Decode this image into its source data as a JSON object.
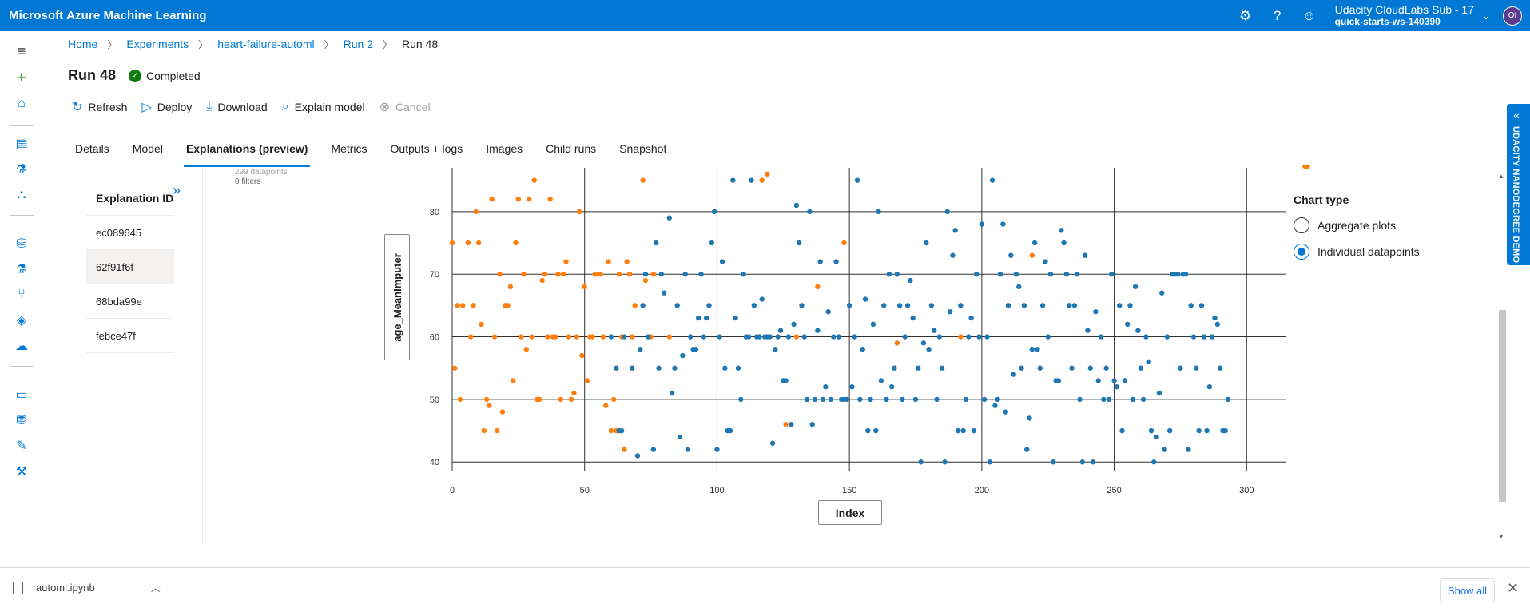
{
  "app": {
    "title": "Microsoft Azure Machine Learning"
  },
  "account": {
    "name": "Udacity CloudLabs Sub - 17",
    "workspace": "quick-starts-ws-140390",
    "avatar_initials": "OI"
  },
  "breadcrumb": [
    "Home",
    "Experiments",
    "heart-failure-automl",
    "Run 2",
    "Run 48"
  ],
  "run": {
    "title": "Run 48",
    "status": "Completed"
  },
  "toolbar": {
    "refresh": "Refresh",
    "deploy": "Deploy",
    "download": "Download",
    "explain": "Explain model",
    "cancel": "Cancel"
  },
  "tabs": [
    "Details",
    "Model",
    "Explanations (preview)",
    "Metrics",
    "Outputs + logs",
    "Images",
    "Child runs",
    "Snapshot"
  ],
  "explanations": {
    "header": "Explanation ID",
    "items": [
      "ec089645",
      "62f91f6f",
      "68bda99e",
      "febce47f"
    ],
    "selected": "62f91f6f"
  },
  "filter_info": {
    "datapoints": "299 datapoints",
    "filters": "0 filters"
  },
  "chart_type": {
    "title": "Chart type",
    "options": [
      "Aggregate plots",
      "Individual datapoints"
    ],
    "selected": "Individual datapoints"
  },
  "side_banner": "UDACITY NANODEGREE DEMO",
  "download_bar": {
    "file": "automl.ipynb",
    "show_all": "Show all"
  },
  "colors": {
    "brand": "#0078d4",
    "series_a": "#ff7f0e",
    "series_b": "#1f77b4"
  },
  "chart_data": {
    "type": "scatter",
    "xlabel": "Index",
    "ylabel": "age_MeanImputer",
    "xlim": [
      0,
      315
    ],
    "ylim": [
      38.5,
      87
    ],
    "x_ticks": [
      0,
      50,
      100,
      150,
      200,
      250,
      300
    ],
    "y_ticks": [
      40,
      50,
      60,
      70,
      80
    ],
    "grid": true,
    "series": [
      {
        "color": "#ff7f0e",
        "points": [
          [
            0,
            75
          ],
          [
            1,
            55
          ],
          [
            2,
            65
          ],
          [
            3,
            50
          ],
          [
            4,
            65
          ],
          [
            6,
            75
          ],
          [
            7,
            60
          ],
          [
            8,
            65
          ],
          [
            9,
            80
          ],
          [
            10,
            75
          ],
          [
            11,
            62
          ],
          [
            12,
            45
          ],
          [
            13,
            50
          ],
          [
            14,
            49
          ],
          [
            15,
            82
          ],
          [
            16,
            60
          ],
          [
            17,
            45
          ],
          [
            18,
            70
          ],
          [
            19,
            48
          ],
          [
            20,
            65
          ],
          [
            21,
            65
          ],
          [
            22,
            68
          ],
          [
            23,
            53
          ],
          [
            24,
            75
          ],
          [
            25,
            82
          ],
          [
            26,
            60
          ],
          [
            27,
            70
          ],
          [
            28,
            58
          ],
          [
            29,
            82
          ],
          [
            30,
            60
          ],
          [
            31,
            85
          ],
          [
            32,
            50
          ],
          [
            33,
            50
          ],
          [
            34,
            69
          ],
          [
            35,
            70
          ],
          [
            36,
            60
          ],
          [
            37,
            82
          ],
          [
            38,
            60
          ],
          [
            39,
            60
          ],
          [
            40,
            70
          ],
          [
            41,
            50
          ],
          [
            42,
            70
          ],
          [
            43,
            72
          ],
          [
            44,
            60
          ],
          [
            45,
            50
          ],
          [
            46,
            51
          ],
          [
            47,
            60
          ],
          [
            48,
            80
          ],
          [
            49,
            57
          ],
          [
            50,
            68
          ],
          [
            51,
            53
          ],
          [
            52,
            60
          ],
          [
            53,
            60
          ],
          [
            54,
            70
          ],
          [
            56,
            70
          ],
          [
            57,
            60
          ],
          [
            58,
            49
          ],
          [
            59,
            72
          ],
          [
            60,
            45
          ],
          [
            61,
            50
          ],
          [
            62,
            45
          ],
          [
            63,
            70
          ],
          [
            64,
            60
          ],
          [
            65,
            42
          ],
          [
            66,
            72
          ],
          [
            67,
            70
          ],
          [
            68,
            60
          ],
          [
            69,
            65
          ],
          [
            72,
            85
          ],
          [
            73,
            69
          ],
          [
            75,
            60
          ],
          [
            76,
            70
          ],
          [
            82,
            60
          ],
          [
            117,
            85
          ],
          [
            119,
            86
          ],
          [
            126,
            46
          ],
          [
            130,
            60
          ],
          [
            138,
            68
          ],
          [
            148,
            75
          ],
          [
            168,
            59
          ],
          [
            192,
            60
          ],
          [
            219,
            73
          ]
        ]
      },
      {
        "color": "#1f77b4",
        "points": [
          [
            60,
            60
          ],
          [
            62,
            55
          ],
          [
            63,
            45
          ],
          [
            64,
            45
          ],
          [
            65,
            60
          ],
          [
            68,
            55
          ],
          [
            70,
            41
          ],
          [
            71,
            58
          ],
          [
            72,
            65
          ],
          [
            73,
            70
          ],
          [
            74,
            60
          ],
          [
            76,
            42
          ],
          [
            77,
            75
          ],
          [
            78,
            55
          ],
          [
            79,
            70
          ],
          [
            80,
            67
          ],
          [
            82,
            79
          ],
          [
            83,
            51
          ],
          [
            84,
            55
          ],
          [
            85,
            65
          ],
          [
            86,
            44
          ],
          [
            87,
            57
          ],
          [
            88,
            70
          ],
          [
            89,
            42
          ],
          [
            90,
            60
          ],
          [
            91,
            58
          ],
          [
            92,
            58
          ],
          [
            93,
            63
          ],
          [
            94,
            70
          ],
          [
            95,
            60
          ],
          [
            96,
            63
          ],
          [
            97,
            65
          ],
          [
            98,
            75
          ],
          [
            99,
            80
          ],
          [
            100,
            42
          ],
          [
            101,
            60
          ],
          [
            102,
            72
          ],
          [
            103,
            55
          ],
          [
            104,
            45
          ],
          [
            105,
            45
          ],
          [
            106,
            85
          ],
          [
            107,
            63
          ],
          [
            108,
            55
          ],
          [
            109,
            50
          ],
          [
            110,
            70
          ],
          [
            111,
            60
          ],
          [
            112,
            60
          ],
          [
            113,
            85
          ],
          [
            114,
            65
          ],
          [
            115,
            60
          ],
          [
            116,
            60
          ],
          [
            117,
            66
          ],
          [
            118,
            60
          ],
          [
            119,
            60
          ],
          [
            120,
            60
          ],
          [
            121,
            43
          ],
          [
            122,
            58
          ],
          [
            123,
            60
          ],
          [
            124,
            61
          ],
          [
            125,
            53
          ],
          [
            126,
            53
          ],
          [
            127,
            60
          ],
          [
            128,
            46
          ],
          [
            129,
            62
          ],
          [
            130,
            81
          ],
          [
            131,
            75
          ],
          [
            132,
            65
          ],
          [
            133,
            60
          ],
          [
            134,
            50
          ],
          [
            135,
            80
          ],
          [
            136,
            46
          ],
          [
            137,
            50
          ],
          [
            138,
            61
          ],
          [
            139,
            72
          ],
          [
            140,
            50
          ],
          [
            141,
            52
          ],
          [
            142,
            64
          ],
          [
            143,
            50
          ],
          [
            144,
            60
          ],
          [
            145,
            72
          ],
          [
            146,
            60
          ],
          [
            147,
            50
          ],
          [
            148,
            50
          ],
          [
            149,
            50
          ],
          [
            150,
            65
          ],
          [
            151,
            52
          ],
          [
            152,
            60
          ],
          [
            153,
            85
          ],
          [
            154,
            50
          ],
          [
            155,
            58
          ],
          [
            156,
            66
          ],
          [
            157,
            45
          ],
          [
            158,
            50
          ],
          [
            159,
            62
          ],
          [
            160,
            45
          ],
          [
            161,
            80
          ],
          [
            162,
            53
          ],
          [
            163,
            65
          ],
          [
            164,
            50
          ],
          [
            165,
            70
          ],
          [
            166,
            52
          ],
          [
            167,
            55
          ],
          [
            168,
            70
          ],
          [
            169,
            65
          ],
          [
            170,
            50
          ],
          [
            171,
            60
          ],
          [
            172,
            65
          ],
          [
            173,
            69
          ],
          [
            174,
            63
          ],
          [
            175,
            50
          ],
          [
            176,
            55
          ],
          [
            177,
            40
          ],
          [
            178,
            59
          ],
          [
            179,
            75
          ],
          [
            180,
            58
          ],
          [
            181,
            65
          ],
          [
            182,
            61
          ],
          [
            183,
            50
          ],
          [
            184,
            60
          ],
          [
            185,
            55
          ],
          [
            186,
            40
          ],
          [
            187,
            80
          ],
          [
            188,
            64
          ],
          [
            189,
            73
          ],
          [
            190,
            77
          ],
          [
            191,
            45
          ],
          [
            192,
            65
          ],
          [
            193,
            45
          ],
          [
            194,
            50
          ],
          [
            195,
            60
          ],
          [
            196,
            63
          ],
          [
            197,
            45
          ],
          [
            198,
            70
          ],
          [
            199,
            60
          ],
          [
            200,
            78
          ],
          [
            201,
            50
          ],
          [
            202,
            60
          ],
          [
            203,
            40
          ],
          [
            204,
            85
          ],
          [
            205,
            49
          ],
          [
            206,
            50
          ],
          [
            207,
            70
          ],
          [
            208,
            78
          ],
          [
            209,
            48
          ],
          [
            210,
            65
          ],
          [
            211,
            73
          ],
          [
            212,
            54
          ],
          [
            213,
            70
          ],
          [
            214,
            68
          ],
          [
            215,
            55
          ],
          [
            216,
            65
          ],
          [
            217,
            42
          ],
          [
            218,
            47
          ],
          [
            219,
            58
          ],
          [
            220,
            75
          ],
          [
            221,
            58
          ],
          [
            222,
            55
          ],
          [
            223,
            65
          ],
          [
            224,
            72
          ],
          [
            225,
            60
          ],
          [
            226,
            70
          ],
          [
            227,
            40
          ],
          [
            228,
            53
          ],
          [
            229,
            53
          ],
          [
            230,
            77
          ],
          [
            231,
            75
          ],
          [
            232,
            70
          ],
          [
            233,
            65
          ],
          [
            234,
            55
          ],
          [
            235,
            65
          ],
          [
            236,
            70
          ],
          [
            237,
            50
          ],
          [
            238,
            40
          ],
          [
            239,
            73
          ],
          [
            240,
            61
          ],
          [
            241,
            55
          ],
          [
            242,
            40
          ],
          [
            243,
            64
          ],
          [
            244,
            53
          ],
          [
            245,
            60
          ],
          [
            246,
            50
          ],
          [
            247,
            55
          ],
          [
            248,
            50
          ],
          [
            249,
            70
          ],
          [
            250,
            53
          ],
          [
            251,
            52
          ],
          [
            252,
            65
          ],
          [
            253,
            45
          ],
          [
            254,
            53
          ],
          [
            255,
            62
          ],
          [
            256,
            65
          ],
          [
            257,
            50
          ],
          [
            258,
            68
          ],
          [
            259,
            61
          ],
          [
            260,
            55
          ],
          [
            261,
            50
          ],
          [
            262,
            60
          ],
          [
            263,
            56
          ],
          [
            264,
            45
          ],
          [
            265,
            40
          ],
          [
            266,
            44
          ],
          [
            267,
            51
          ],
          [
            268,
            67
          ],
          [
            269,
            42
          ],
          [
            270,
            60
          ],
          [
            271,
            45
          ],
          [
            272,
            70
          ],
          [
            273,
            70
          ],
          [
            274,
            70
          ],
          [
            275,
            55
          ],
          [
            276,
            70
          ],
          [
            277,
            70
          ],
          [
            278,
            42
          ],
          [
            279,
            65
          ],
          [
            280,
            60
          ],
          [
            281,
            55
          ],
          [
            282,
            45
          ],
          [
            283,
            65
          ],
          [
            284,
            60
          ],
          [
            285,
            45
          ],
          [
            286,
            52
          ],
          [
            287,
            60
          ],
          [
            288,
            63
          ],
          [
            289,
            62
          ],
          [
            290,
            55
          ],
          [
            291,
            45
          ],
          [
            292,
            45
          ],
          [
            293,
            50
          ]
        ]
      }
    ]
  }
}
